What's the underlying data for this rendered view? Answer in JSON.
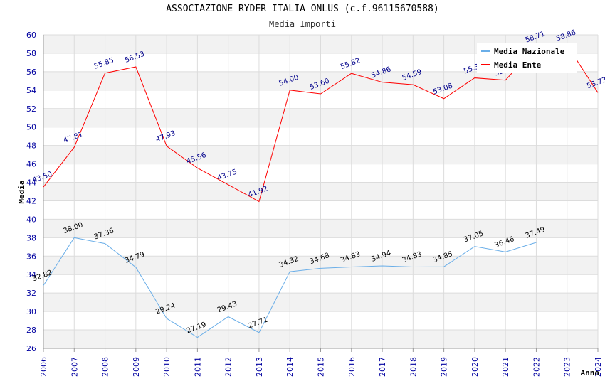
{
  "header": {
    "title": "ASSOCIAZIONE RYDER ITALIA ONLUS (c.f.96115670588)",
    "subtitle": "Media Importi"
  },
  "chart_data": {
    "type": "line",
    "xlabel": "Anno",
    "ylabel": "Media",
    "categories": [
      "2006",
      "2007",
      "2008",
      "2009",
      "2010",
      "2011",
      "2012",
      "2013",
      "2014",
      "2015",
      "2016",
      "2017",
      "2018",
      "2019",
      "2020",
      "2021",
      "2022",
      "2023",
      "2024"
    ],
    "ylim": [
      26,
      60
    ],
    "yticks": [
      26,
      28,
      30,
      32,
      34,
      36,
      38,
      40,
      42,
      44,
      46,
      48,
      50,
      52,
      54,
      56,
      58,
      60
    ],
    "grid": true,
    "legend_position": "top-right",
    "series": [
      {
        "name": "Media Nazionale",
        "color": "#6aaee8",
        "label_color": "#000000",
        "values": [
          32.82,
          38.0,
          37.36,
          34.79,
          29.24,
          27.19,
          29.43,
          27.71,
          34.32,
          34.68,
          34.83,
          34.94,
          34.83,
          34.85,
          37.05,
          36.46,
          37.49,
          null,
          null
        ]
      },
      {
        "name": "Media Ente",
        "color": "#ff0000",
        "label_color": "#00008b",
        "values": [
          43.5,
          47.81,
          55.85,
          56.53,
          47.93,
          45.56,
          43.75,
          41.92,
          54.0,
          53.6,
          55.82,
          54.86,
          54.59,
          53.08,
          55.33,
          55.09,
          58.71,
          58.86,
          53.73
        ]
      }
    ]
  }
}
